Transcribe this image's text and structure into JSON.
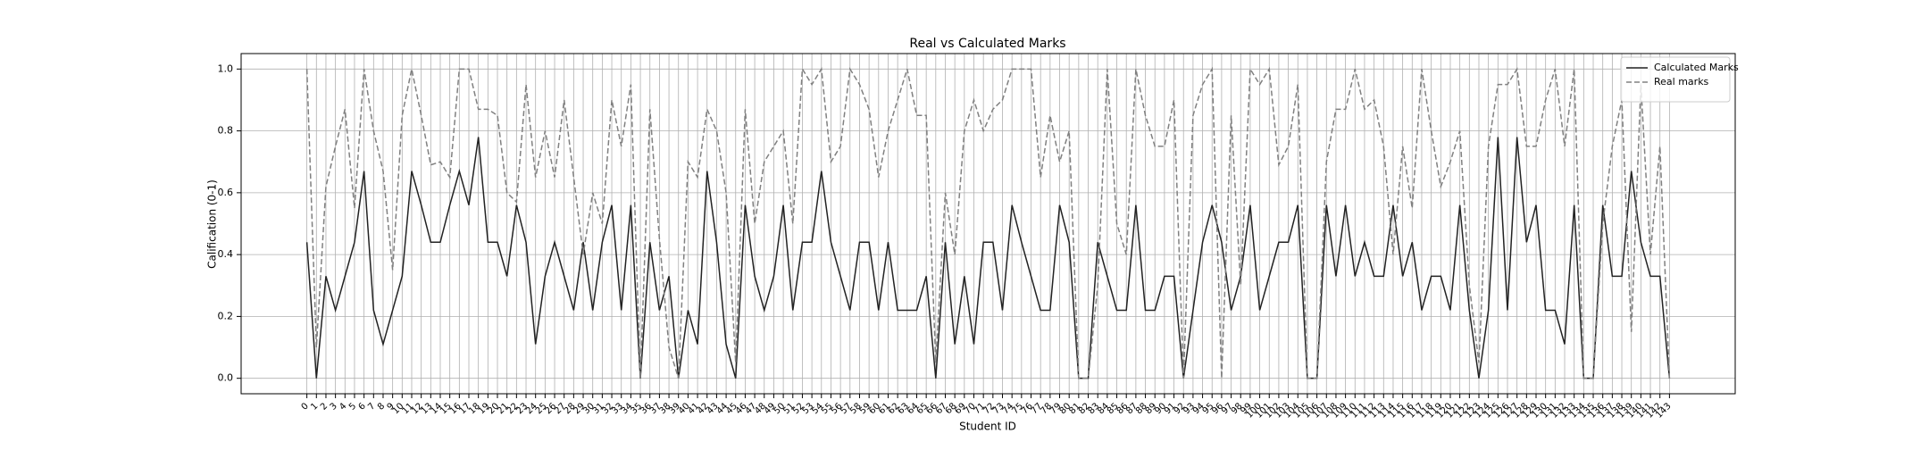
{
  "chart_data": {
    "type": "line",
    "title": "Real vs Calculated Marks",
    "x_label": "Student ID",
    "y_label": "Calification (0-1)",
    "categories": [
      "0",
      "1",
      "2",
      "3",
      "4",
      "5",
      "6",
      "7",
      "8",
      "9",
      "10",
      "11",
      "12",
      "13",
      "14",
      "15",
      "16",
      "17",
      "18",
      "19",
      "20",
      "21",
      "22",
      "23",
      "24",
      "25",
      "26",
      "27",
      "28",
      "29",
      "30",
      "31",
      "32",
      "33",
      "34",
      "35",
      "36",
      "37",
      "38",
      "39",
      "40",
      "41",
      "42",
      "43",
      "44",
      "45",
      "46",
      "47",
      "48",
      "49",
      "50",
      "51",
      "52",
      "53",
      "54",
      "55",
      "56",
      "57",
      "58",
      "59",
      "60",
      "61",
      "62",
      "63",
      "64",
      "65",
      "66",
      "67",
      "68",
      "69",
      "70",
      "71",
      "72",
      "73",
      "74",
      "75",
      "76",
      "77",
      "78",
      "79",
      "80",
      "81",
      "82",
      "83",
      "84",
      "85",
      "86",
      "87",
      "88",
      "89",
      "90",
      "91",
      "92",
      "93",
      "94",
      "95",
      "96",
      "97",
      "98",
      "99",
      "100",
      "101",
      "102",
      "103",
      "104",
      "105",
      "106",
      "107",
      "108",
      "109",
      "110",
      "111",
      "112",
      "113",
      "114",
      "115",
      "116",
      "117",
      "118",
      "119",
      "120",
      "121",
      "122",
      "123",
      "124",
      "125",
      "126",
      "127",
      "128",
      "129",
      "130",
      "131",
      "132",
      "133",
      "134",
      "135",
      "136",
      "137",
      "138",
      "139",
      "140",
      "141",
      "142",
      "143"
    ],
    "series": [
      {
        "name": "Calculated Marks",
        "color": "#222222",
        "dash": false,
        "values": [
          0.44,
          0,
          0.33,
          0.22,
          0.33,
          0.44,
          0.67,
          0.22,
          0.11,
          0.22,
          0.33,
          0.67,
          0.56,
          0.44,
          0.44,
          0.56,
          0.67,
          0.56,
          0.78,
          0.44,
          0.44,
          0.33,
          0.56,
          0.44,
          0.11,
          0.33,
          0.44,
          0.33,
          0.22,
          0.44,
          0.22,
          0.44,
          0.56,
          0.22,
          0.56,
          0,
          0.44,
          0.22,
          0.33,
          0,
          0.22,
          0.11,
          0.67,
          0.44,
          0.11,
          0,
          0.56,
          0.33,
          0.22,
          0.33,
          0.56,
          0.22,
          0.44,
          0.44,
          0.67,
          0.44,
          0.33,
          0.22,
          0.44,
          0.44,
          0.22,
          0.44,
          0.22,
          0.22,
          0.22,
          0.33,
          0,
          0.44,
          0.11,
          0.33,
          0.11,
          0.44,
          0.44,
          0.22,
          0.56,
          0.44,
          0.33,
          0.22,
          0.22,
          0.56,
          0.44,
          0,
          0,
          0.44,
          0.33,
          0.22,
          0.22,
          0.56,
          0.22,
          0.22,
          0.33,
          0.33,
          0,
          0.22,
          0.44,
          0.56,
          0.44,
          0.22,
          0.33,
          0.56,
          0.22,
          0.33,
          0.44,
          0.44,
          0.56,
          0,
          0,
          0.56,
          0.33,
          0.56,
          0.33,
          0.44,
          0.33,
          0.33,
          0.56,
          0.33,
          0.44,
          0.22,
          0.33,
          0.33,
          0.22,
          0.56,
          0.22,
          0,
          0.22,
          0.78,
          0.22,
          0.78,
          0.44,
          0.56,
          0.22,
          0.22,
          0.11,
          0.56,
          0,
          0,
          0.56,
          0.33,
          0.33,
          0.67,
          0.44,
          0.33,
          0.33,
          0
        ]
      },
      {
        "name": "Real marks",
        "color": "#808080",
        "dash": true,
        "values": [
          1.0,
          0.1,
          0.62,
          0.75,
          0.87,
          0.55,
          1.0,
          0.8,
          0.67,
          0.35,
          0.85,
          1.0,
          0.85,
          0.69,
          0.7,
          0.65,
          1.0,
          1.0,
          0.87,
          0.87,
          0.85,
          0.6,
          0.57,
          0.95,
          0.65,
          0.8,
          0.65,
          0.9,
          0.65,
          0.4,
          0.6,
          0.5,
          0.9,
          0.75,
          0.95,
          0,
          0.87,
          0.45,
          0.1,
          0,
          0.7,
          0.65,
          0.87,
          0.8,
          0.6,
          0.05,
          0.87,
          0.5,
          0.7,
          0.75,
          0.8,
          0.5,
          1.0,
          0.95,
          1.0,
          0.7,
          0.75,
          1.0,
          0.95,
          0.87,
          0.65,
          0.8,
          0.9,
          1.0,
          0.85,
          0.85,
          0.05,
          0.6,
          0.4,
          0.8,
          0.9,
          0.8,
          0.87,
          0.9,
          1.0,
          1.0,
          1.0,
          0.65,
          0.85,
          0.7,
          0.8,
          0,
          0,
          0.3,
          1.0,
          0.5,
          0.4,
          1.0,
          0.85,
          0.75,
          0.75,
          0.9,
          0,
          0.85,
          0.95,
          1.0,
          0,
          0.85,
          0.3,
          1.0,
          0.95,
          1.0,
          0.69,
          0.75,
          0.95,
          0,
          0,
          0.7,
          0.87,
          0.87,
          1.0,
          0.87,
          0.9,
          0.75,
          0.4,
          0.75,
          0.55,
          1.0,
          0.8,
          0.62,
          0.7,
          0.8,
          0.3,
          0.05,
          0.75,
          0.95,
          0.95,
          1.0,
          0.75,
          0.75,
          0.9,
          1.0,
          0.75,
          1.0,
          0,
          0,
          0.5,
          0.75,
          0.9,
          0.15,
          0.95,
          0.4,
          0.75,
          0
        ]
      }
    ],
    "ylim": [
      -0.05,
      1.05
    ],
    "yticks": [
      {
        "value": 0,
        "label": "0.0"
      },
      0.2,
      0.4,
      0.6,
      0.8,
      {
        "value": 1,
        "label": "1.0"
      }
    ],
    "grid": true,
    "legend": "upper right"
  }
}
